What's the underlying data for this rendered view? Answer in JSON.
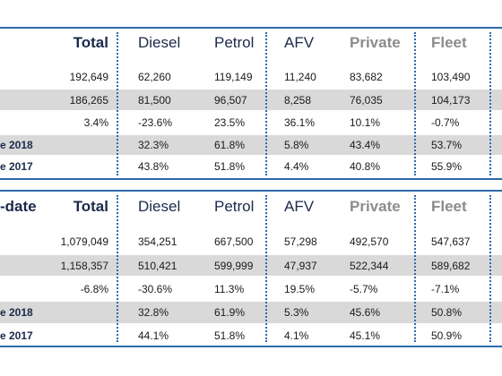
{
  "section1": {
    "corner_label": "",
    "headers": {
      "total": "Total",
      "diesel": "Diesel",
      "petrol": "Petrol",
      "afv": "AFV",
      "private": "Private",
      "fleet": "Fleet"
    },
    "rows": [
      {
        "label": "",
        "total": "192,649",
        "diesel": "62,260",
        "petrol": "119,149",
        "afv": "11,240",
        "private": "83,682",
        "fleet": "103,490"
      },
      {
        "label": "",
        "total": "186,265",
        "diesel": "81,500",
        "petrol": "96,507",
        "afv": "8,258",
        "private": "76,035",
        "fleet": "104,173"
      },
      {
        "label": "",
        "total": "3.4%",
        "diesel": "-23.6%",
        "petrol": "23.5%",
        "afv": "36.1%",
        "private": "10.1%",
        "fleet": "-0.7%"
      },
      {
        "label": "e 2018",
        "total": "",
        "diesel": "32.3%",
        "petrol": "61.8%",
        "afv": "5.8%",
        "private": "43.4%",
        "fleet": "53.7%"
      },
      {
        "label": "e 2017",
        "total": "",
        "diesel": "43.8%",
        "petrol": "51.8%",
        "afv": "4.4%",
        "private": "40.8%",
        "fleet": "55.9%"
      }
    ]
  },
  "section2": {
    "corner_label": "-date",
    "headers": {
      "total": "Total",
      "diesel": "Diesel",
      "petrol": "Petrol",
      "afv": "AFV",
      "private": "Private",
      "fleet": "Fleet"
    },
    "rows": [
      {
        "label": "",
        "total": "1,079,049",
        "diesel": "354,251",
        "petrol": "667,500",
        "afv": "57,298",
        "private": "492,570",
        "fleet": "547,637"
      },
      {
        "label": "",
        "total": "1,158,357",
        "diesel": "510,421",
        "petrol": "599,999",
        "afv": "47,937",
        "private": "522,344",
        "fleet": "589,682"
      },
      {
        "label": "",
        "total": "-6.8%",
        "diesel": "-30.6%",
        "petrol": "11.3%",
        "afv": "19.5%",
        "private": "-5.7%",
        "fleet": "-7.1%"
      },
      {
        "label": "e 2018",
        "total": "",
        "diesel": "32.8%",
        "petrol": "61.9%",
        "afv": "5.3%",
        "private": "45.6%",
        "fleet": "50.8%"
      },
      {
        "label": "e 2017",
        "total": "",
        "diesel": "44.1%",
        "petrol": "51.8%",
        "afv": "4.1%",
        "private": "45.1%",
        "fleet": "50.9%"
      }
    ]
  }
}
